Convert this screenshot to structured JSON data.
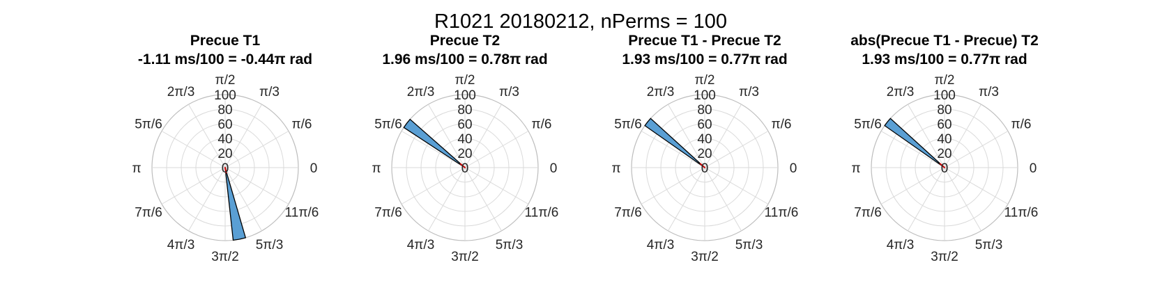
{
  "figure": {
    "title": "R1021 20180212, nPerms = 100"
  },
  "colors": {
    "bar_fill": "#5a9fd4",
    "bar_edge": "#000000",
    "mean_line": "#cc0000",
    "grid": "#dadada"
  },
  "chart_data": [
    {
      "type": "polar-histogram",
      "title": "Precue T1",
      "subtitle": "-1.11 ms/100 = -0.44π rad",
      "rlim": [
        0,
        100
      ],
      "rticks": [
        "0",
        "20",
        "40",
        "60",
        "80",
        "100"
      ],
      "theta_ticks": [
        "0",
        "π/6",
        "π/3",
        "π/2",
        "2π/3",
        "5π/6",
        "π",
        "7π/6",
        "4π/3",
        "3π/2",
        "5π/3",
        "11π/6"
      ],
      "bars": [
        {
          "theta_start_pi": 1.535,
          "theta_end_pi": 1.59,
          "count": 100
        }
      ],
      "mean_angle_pi": -0.44,
      "mean_length": 7
    },
    {
      "type": "polar-histogram",
      "title": "Precue T2",
      "subtitle": "1.96 ms/100 = 0.78π rad",
      "rlim": [
        0,
        100
      ],
      "rticks": [
        "0",
        "20",
        "40",
        "60",
        "80",
        "100"
      ],
      "theta_ticks": [
        "0",
        "π/6",
        "π/3",
        "π/2",
        "2π/3",
        "5π/6",
        "π",
        "7π/6",
        "4π/3",
        "3π/2",
        "5π/3",
        "11π/6"
      ],
      "bars": [
        {
          "theta_start_pi": 0.77,
          "theta_end_pi": 0.815,
          "count": 100
        }
      ],
      "mean_angle_pi": 0.78,
      "mean_length": 8
    },
    {
      "type": "polar-histogram",
      "title": "Precue T1 - Precue T2",
      "subtitle": "1.93 ms/100 = 0.77π rad",
      "rlim": [
        0,
        100
      ],
      "rticks": [
        "0",
        "20",
        "40",
        "60",
        "80",
        "100"
      ],
      "theta_ticks": [
        "0",
        "π/6",
        "π/3",
        "π/2",
        "2π/3",
        "5π/6",
        "π",
        "7π/6",
        "4π/3",
        "3π/2",
        "5π/3",
        "11π/6"
      ],
      "bars": [
        {
          "theta_start_pi": 0.765,
          "theta_end_pi": 0.805,
          "count": 100
        }
      ],
      "mean_angle_pi": 0.77,
      "mean_length": 8
    },
    {
      "type": "polar-histogram",
      "title": "abs(Precue T1 - Precue) T2",
      "subtitle": "1.93 ms/100 = 0.77π rad",
      "rlim": [
        0,
        100
      ],
      "rticks": [
        "0",
        "20",
        "40",
        "60",
        "80",
        "100"
      ],
      "theta_ticks": [
        "0",
        "π/6",
        "π/3",
        "π/2",
        "2π/3",
        "5π/6",
        "π",
        "7π/6",
        "4π/3",
        "3π/2",
        "5π/3",
        "11π/6"
      ],
      "bars": [
        {
          "theta_start_pi": 0.765,
          "theta_end_pi": 0.805,
          "count": 100
        }
      ],
      "mean_angle_pi": 0.77,
      "mean_length": 8
    }
  ]
}
